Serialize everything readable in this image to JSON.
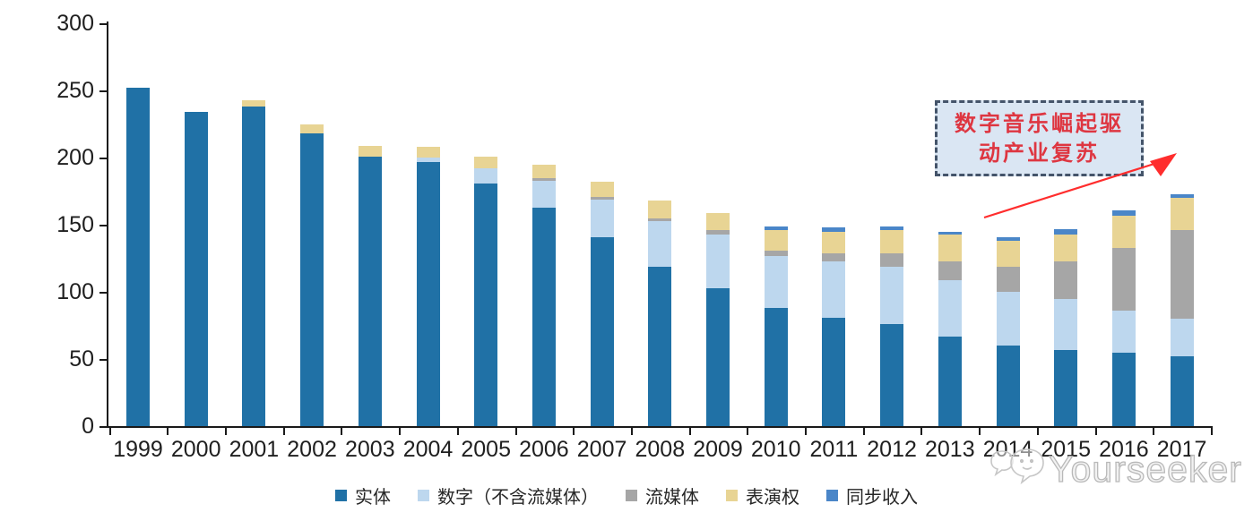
{
  "chart_data": {
    "type": "bar",
    "stacked": true,
    "categories": [
      "1999",
      "2000",
      "2001",
      "2002",
      "2003",
      "2004",
      "2005",
      "2006",
      "2007",
      "2008",
      "2009",
      "2010",
      "2011",
      "2012",
      "2013",
      "2014",
      "2015",
      "2016",
      "2017"
    ],
    "series": [
      {
        "key": "physical",
        "name": "实体",
        "color": "#2071A6",
        "values": [
          252,
          234,
          238,
          218,
          201,
          197,
          181,
          163,
          141,
          119,
          103,
          88,
          81,
          76,
          67,
          60,
          57,
          55,
          52
        ]
      },
      {
        "key": "digital-excl-streaming",
        "name": "数字（不含流媒体）",
        "color": "#BDD7EE",
        "values": [
          0,
          0,
          0,
          0,
          0,
          3,
          11,
          20,
          28,
          34,
          40,
          39,
          42,
          43,
          42,
          40,
          38,
          31,
          28
        ]
      },
      {
        "key": "streaming",
        "name": "流媒体",
        "color": "#A6A6A6",
        "values": [
          0,
          0,
          0,
          0,
          0,
          0,
          0,
          2,
          2,
          2,
          3,
          4,
          6,
          10,
          14,
          19,
          28,
          47,
          66
        ]
      },
      {
        "key": "performance-rights",
        "name": "表演权",
        "color": "#E8D494",
        "values": [
          0,
          0,
          5,
          7,
          8,
          8,
          9,
          10,
          11,
          13,
          13,
          15,
          16,
          17,
          20,
          19,
          20,
          24,
          24
        ]
      },
      {
        "key": "sync-revenue",
        "name": "同步收入",
        "color": "#4A86C8",
        "values": [
          0,
          0,
          0,
          0,
          0,
          0,
          0,
          0,
          0,
          0,
          0,
          3,
          3,
          3,
          2,
          3,
          4,
          4,
          3
        ]
      }
    ],
    "ylim": [
      0,
      300
    ],
    "yticks": [
      0,
      50,
      100,
      150,
      200,
      250,
      300
    ],
    "grid": false,
    "legend_position": "bottom"
  },
  "annotation": {
    "line1": "数字音乐崛起驱",
    "line2": "动产业复苏",
    "text_color": "#DE3641",
    "box_fill": "#DAE6F3",
    "box_border": "#44546A",
    "arrow_color": "#FF2D2D"
  },
  "watermark": {
    "text": "Yourseeker",
    "logo": "chat-bubbles-icon"
  }
}
